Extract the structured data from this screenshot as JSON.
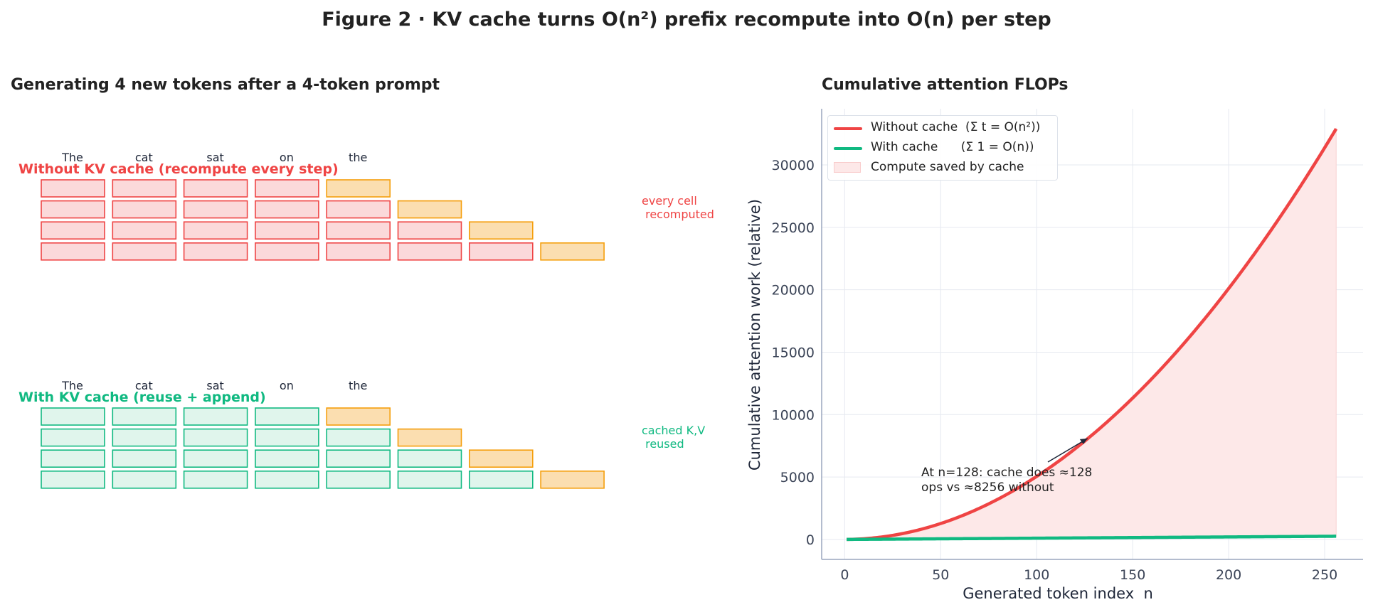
{
  "title": "Figure 2 · KV cache turns O(n²) prefix recompute into O(n) per step",
  "left_panel": {
    "title": "Generating 4 new tokens after a 4-token prompt",
    "tokens": [
      "The",
      "cat",
      "sat",
      "on",
      "the"
    ],
    "without": {
      "label": "Without KV cache (recompute every step)",
      "note": "every cell\n recomputed",
      "color": "#ef4444",
      "fill": "#fbd9da"
    },
    "with": {
      "label": "With KV cache (reuse + append)",
      "note": "cached K,V\n reused",
      "color": "#10b981",
      "fill": "#e0f5ec"
    },
    "new_cell": {
      "color": "#f59e0b",
      "fill": "#fbdeb0"
    },
    "rows": [
      5,
      6,
      7,
      8
    ]
  },
  "chart_data": {
    "type": "line",
    "title": "Cumulative attention FLOPs",
    "xlabel": "Generated token index  n",
    "ylabel": "Cumulative attention work (relative)",
    "xlim": [
      -12,
      270
    ],
    "ylim": [
      -1600,
      34500
    ],
    "xticks": [
      0,
      50,
      100,
      150,
      200,
      250
    ],
    "yticks": [
      0,
      5000,
      10000,
      15000,
      20000,
      25000,
      30000
    ],
    "grid": true,
    "legend_placement": "top-left",
    "series": [
      {
        "name": "Without cache  (Σ t = O(n²))",
        "formula": "n(n+1)/2",
        "x_range": [
          1,
          256
        ],
        "color": "#ef4444"
      },
      {
        "name": "With cache      (Σ 1 = O(n))",
        "formula": "n",
        "x_range": [
          1,
          256
        ],
        "color": "#10b981"
      }
    ],
    "fill": {
      "name": "Compute saved by cache",
      "color": "#fde8e8"
    },
    "annotation": {
      "text": "At n=128: cache does ≈128\nops vs ≈8256 without",
      "x": 128,
      "y": 8256
    }
  }
}
